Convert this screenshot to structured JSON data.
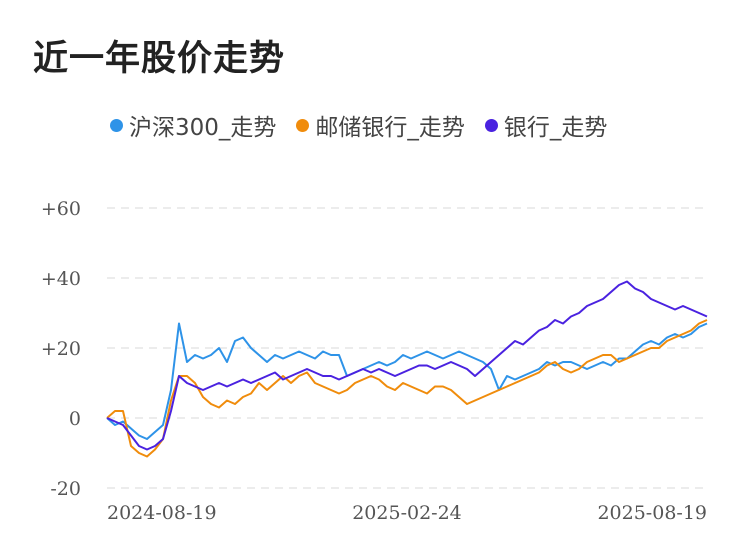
{
  "title": "近一年股价走势",
  "chart_data": {
    "type": "line",
    "ylim": [
      -20,
      60
    ],
    "yticks": [
      "+60",
      "+40",
      "+20",
      "0",
      "-20"
    ],
    "ytick_values": [
      60,
      40,
      20,
      0,
      -20
    ],
    "xticks": [
      "2024-08-19",
      "2025-02-24",
      "2025-08-19"
    ],
    "grid": true,
    "legend_position": "top-left",
    "series": [
      {
        "name": "沪深300_走势",
        "color": "#2e93e8",
        "values": [
          0,
          -2,
          -1,
          -3,
          -5,
          -6,
          -4,
          -2,
          8,
          27,
          16,
          18,
          17,
          18,
          20,
          16,
          22,
          23,
          20,
          18,
          16,
          18,
          17,
          18,
          19,
          18,
          17,
          19,
          18,
          18,
          12,
          13,
          14,
          15,
          16,
          15,
          16,
          18,
          17,
          18,
          19,
          18,
          17,
          18,
          19,
          18,
          17,
          16,
          14,
          8,
          12,
          11,
          12,
          13,
          14,
          16,
          15,
          16,
          16,
          15,
          14,
          15,
          16,
          15,
          17,
          17,
          19,
          21,
          22,
          21,
          23,
          24,
          23,
          24,
          26,
          27
        ]
      },
      {
        "name": "邮储银行_走势",
        "color": "#f08c0c",
        "values": [
          0,
          2,
          2,
          -8,
          -10,
          -11,
          -9,
          -6,
          5,
          12,
          12,
          10,
          6,
          4,
          3,
          5,
          4,
          6,
          7,
          10,
          8,
          10,
          12,
          10,
          12,
          13,
          10,
          9,
          8,
          7,
          8,
          10,
          11,
          12,
          11,
          9,
          8,
          10,
          9,
          8,
          7,
          9,
          9,
          8,
          6,
          4,
          5,
          6,
          7,
          8,
          9,
          10,
          11,
          12,
          13,
          15,
          16,
          14,
          13,
          14,
          16,
          17,
          18,
          18,
          16,
          17,
          18,
          19,
          20,
          20,
          22,
          23,
          24,
          25,
          27,
          28
        ]
      },
      {
        "name": "银行_走势",
        "color": "#4a22e0",
        "values": [
          0,
          -1,
          -2,
          -5,
          -8,
          -9,
          -8,
          -6,
          2,
          12,
          10,
          9,
          8,
          9,
          10,
          9,
          10,
          11,
          10,
          11,
          12,
          13,
          11,
          12,
          13,
          14,
          13,
          12,
          12,
          11,
          12,
          13,
          14,
          13,
          14,
          13,
          12,
          13,
          14,
          15,
          15,
          14,
          15,
          16,
          15,
          14,
          12,
          14,
          16,
          18,
          20,
          22,
          21,
          23,
          25,
          26,
          28,
          27,
          29,
          30,
          32,
          33,
          34,
          36,
          38,
          39,
          37,
          36,
          34,
          33,
          32,
          31,
          32,
          31,
          30,
          29
        ]
      }
    ]
  }
}
